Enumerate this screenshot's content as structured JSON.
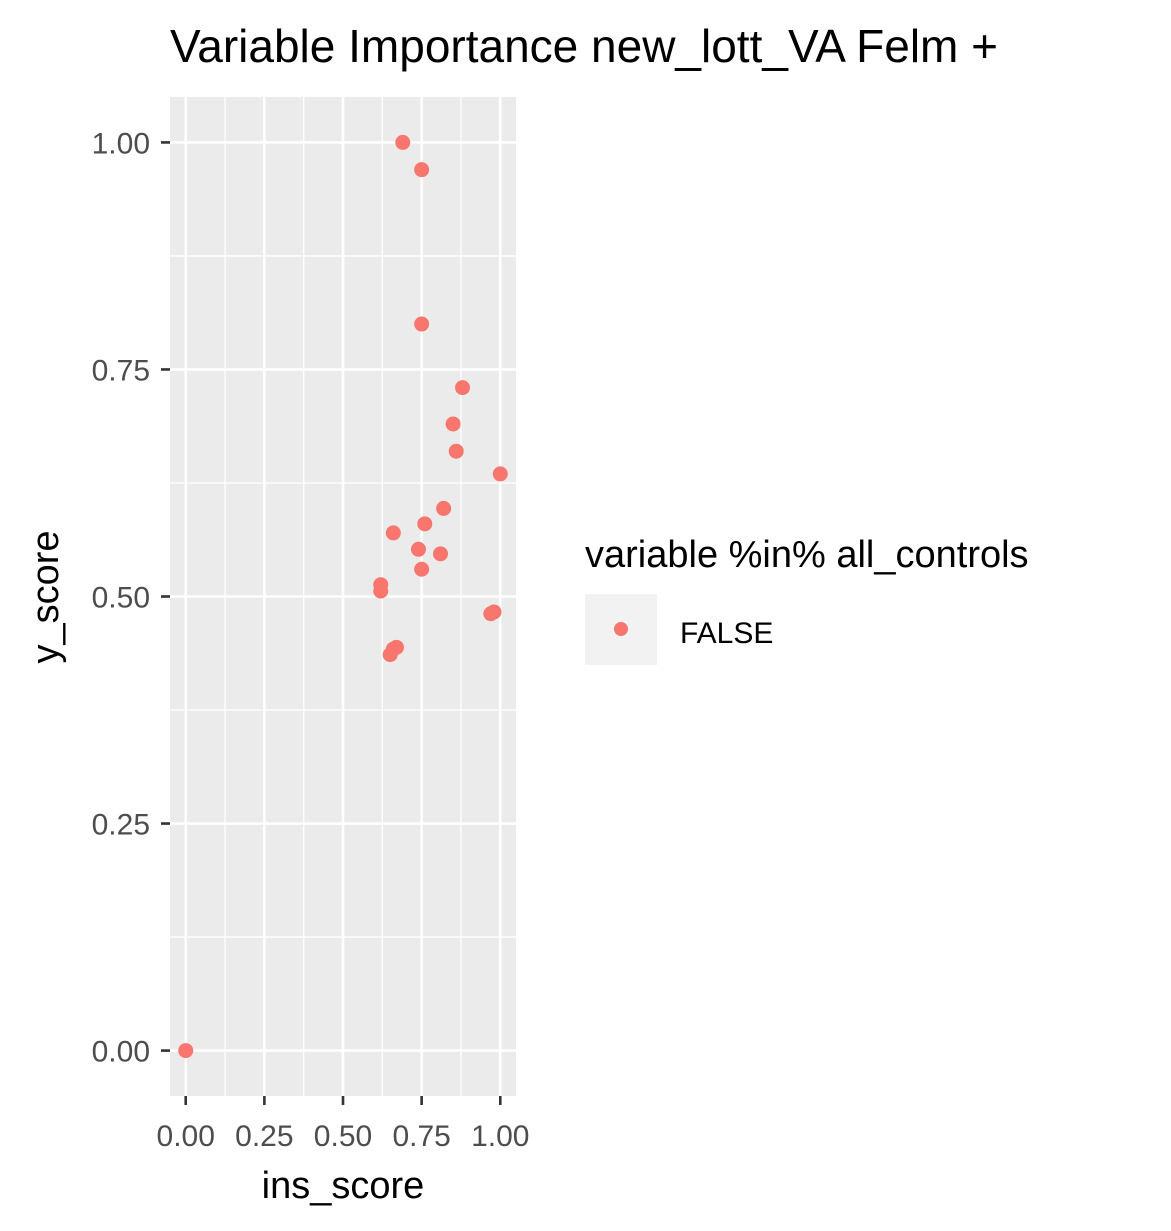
{
  "chart_data": {
    "type": "scatter",
    "title": "Variable Importance new_lott_VA Felm +",
    "xlabel": "ins_score",
    "ylabel": "y_score",
    "xlim": [
      -0.05,
      1.05
    ],
    "ylim": [
      -0.05,
      1.05
    ],
    "x_ticks": [
      0,
      0.25,
      0.5,
      0.75,
      1
    ],
    "x_tick_labels": [
      "0.00",
      "0.25",
      "0.50",
      "0.75",
      "1.00"
    ],
    "y_ticks": [
      0,
      0.25,
      0.5,
      0.75,
      1
    ],
    "y_tick_labels": [
      "0.00",
      "0.25",
      "0.50",
      "0.75",
      "1.00"
    ],
    "grid": true,
    "legend": {
      "title": "variable %in% all_controls",
      "placement": "right",
      "entries": [
        {
          "label": "FALSE",
          "color": "#F8766D"
        }
      ]
    },
    "series": [
      {
        "name": "FALSE",
        "color": "#F8766D",
        "x": [
          0.69,
          0.75,
          0.75,
          0.88,
          0.85,
          0.86,
          1.0,
          0.82,
          0.76,
          0.66,
          0.74,
          0.81,
          0.75,
          0.62,
          0.62,
          0.98,
          0.97,
          0.67,
          0.66,
          0.65,
          0.0
        ],
        "y": [
          1.0,
          0.97,
          0.8,
          0.73,
          0.69,
          0.66,
          0.635,
          0.597,
          0.58,
          0.57,
          0.552,
          0.547,
          0.53,
          0.513,
          0.506,
          0.483,
          0.481,
          0.444,
          0.442,
          0.436,
          0.0
        ]
      }
    ]
  }
}
